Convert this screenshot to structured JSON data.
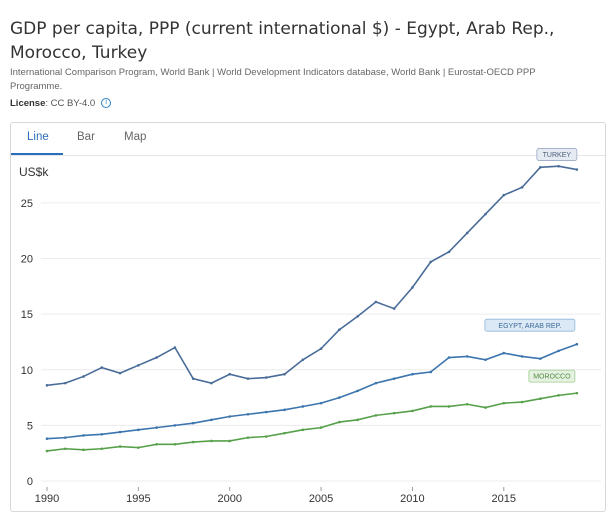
{
  "header": {
    "title_line1": "GDP per capita, PPP (current international $) - Egypt, Arab Rep.,",
    "title_line2": "Morocco, Turkey",
    "source_line1": "International Comparison Program, World Bank | World Development Indicators database, World Bank | Eurostat-OECD PPP",
    "source_line2": "Programme.",
    "license_label": "License",
    "license_value": ": CC BY-4.0"
  },
  "tabs": [
    {
      "label": "Line",
      "active": true
    },
    {
      "label": "Bar",
      "active": false
    },
    {
      "label": "Map",
      "active": false
    }
  ],
  "chart_data": {
    "type": "line",
    "title": "GDP per capita, PPP (current international $) - Egypt, Arab Rep., Morocco, Turkey",
    "ylabel": "US$k",
    "ylim": [
      0,
      28.5
    ],
    "xlim": [
      1990,
      2019.5
    ],
    "yticks": [
      0,
      5,
      10,
      15,
      20,
      25
    ],
    "xticks": [
      1990,
      1995,
      2000,
      2005,
      2010,
      2015
    ],
    "x": [
      1990,
      1991,
      1992,
      1993,
      1994,
      1995,
      1996,
      1997,
      1998,
      1999,
      2000,
      2001,
      2002,
      2003,
      2004,
      2005,
      2006,
      2007,
      2008,
      2009,
      2010,
      2011,
      2012,
      2013,
      2014,
      2015,
      2016,
      2017,
      2018,
      2019
    ],
    "series": [
      {
        "name": "Turkey",
        "label": "TURKEY",
        "color": "#4a6c99",
        "values": [
          8.6,
          8.8,
          9.4,
          10.2,
          9.7,
          10.4,
          11.1,
          12.0,
          9.2,
          8.8,
          9.6,
          9.2,
          9.3,
          9.6,
          10.9,
          11.9,
          13.6,
          14.8,
          16.1,
          15.5,
          17.4,
          19.7,
          20.6,
          22.3,
          24.0,
          25.7,
          26.4,
          28.2,
          28.3,
          28.0
        ]
      },
      {
        "name": "Egypt, Arab Rep.",
        "label": "EGYPT, ARAB REP.",
        "color": "#3c75ae",
        "values": [
          3.8,
          3.9,
          4.1,
          4.2,
          4.4,
          4.6,
          4.8,
          5.0,
          5.2,
          5.5,
          5.8,
          6.0,
          6.2,
          6.4,
          6.7,
          7.0,
          7.5,
          8.1,
          8.8,
          9.2,
          9.6,
          9.8,
          11.1,
          11.2,
          10.9,
          11.5,
          11.2,
          11.0,
          11.7,
          12.3
        ]
      },
      {
        "name": "Morocco",
        "label": "MOROCCO",
        "color": "#57a04a",
        "values": [
          2.7,
          2.9,
          2.8,
          2.9,
          3.1,
          3.0,
          3.3,
          3.3,
          3.5,
          3.6,
          3.6,
          3.9,
          4.0,
          4.3,
          4.6,
          4.8,
          5.3,
          5.5,
          5.9,
          6.1,
          6.3,
          6.7,
          6.7,
          6.9,
          6.6,
          7.0,
          7.1,
          7.4,
          7.7,
          7.9
        ]
      }
    ]
  }
}
